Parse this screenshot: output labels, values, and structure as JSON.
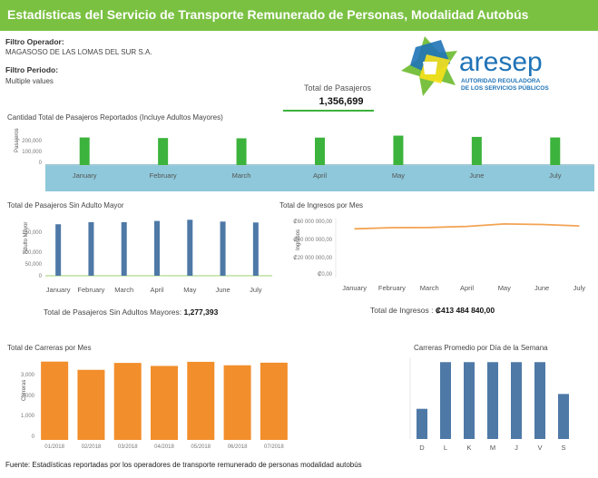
{
  "header": {
    "title": "Estadísticas del Servicio de Transporte Remunerado de Personas, Modalidad Autobús",
    "color": "#7ac142"
  },
  "filters": {
    "operator_label": "Filtro Operador:",
    "operator_value": "MAGASOSO DE LAS LOMAS DEL SUR S.A.",
    "period_label": "Filtro Periodo:",
    "period_value": "Multiple values"
  },
  "logo": {
    "name": "aresep",
    "line1": "AUTORIDAD REGULADORA",
    "line2": "DE LOS SERVICIOS PÚBLICOS"
  },
  "total_pasajeros": {
    "label": "Total de Pasajeros",
    "value": "1,356,699"
  },
  "summaries": {
    "sin_adultos_label": "Total de Pasajeros Sin Adultos Mayores:",
    "sin_adultos_value": "1,277,393",
    "ingresos_label": "Total de Ingresos :",
    "ingresos_value": "₡413 484 840,00"
  },
  "footer": {
    "text": "Fuente: Estadísticas reportadas por los operadores de transporte remunerado de personas modalidad autobús"
  },
  "chart_data": [
    {
      "id": "pasajeros_total",
      "type": "bar",
      "title": "Cantidad Total de Pasajeros Reportados (Incluye Adultos Mayores)",
      "ylabel": "Pasajeros",
      "categories": [
        "January",
        "February",
        "March",
        "April",
        "May",
        "June",
        "July"
      ],
      "values": [
        197000,
        193000,
        191000,
        196000,
        210000,
        201000,
        197000
      ],
      "yticks": [
        "200,000",
        "100,000",
        "0"
      ],
      "ylim": [
        0,
        220000
      ],
      "color": "#3cb33c"
    },
    {
      "id": "sin_adulto_mayor",
      "type": "bar",
      "title": "Total de Pasajeros Sin Adulto Mayor",
      "ylabel": "Adulto Mayor",
      "categories": [
        "January",
        "February",
        "March",
        "April",
        "May",
        "June",
        "July"
      ],
      "values": [
        172000,
        179000,
        179000,
        183000,
        187000,
        181000,
        178000
      ],
      "yticks": [
        "150,000",
        "100,000",
        "50,000",
        "0"
      ],
      "ylim": [
        0,
        200000
      ],
      "color": "#4e79a7"
    },
    {
      "id": "ingresos",
      "type": "line",
      "title": "Total de Ingresos por Mes",
      "ylabel": "Ingresos",
      "categories": [
        "January",
        "February",
        "March",
        "April",
        "May",
        "June",
        "July"
      ],
      "values": [
        56500000,
        58000000,
        58200000,
        59500000,
        62500000,
        61800000,
        60000000
      ],
      "yticks": [
        "₡60 000 000,00",
        "₡40 000 000,00",
        "₡20 000 000,00",
        "₡0,00"
      ],
      "ylim": [
        0,
        70000000
      ],
      "color": "#f3a354"
    },
    {
      "id": "carreras_mes",
      "type": "bar",
      "title": "Total de Carreras por Mes",
      "ylabel": "Carreras",
      "categories": [
        "01/2018",
        "02/2018",
        "03/2018",
        "04/2018",
        "05/2018",
        "06/2018",
        "07/2018"
      ],
      "values": [
        3620,
        3240,
        3560,
        3420,
        3610,
        3450,
        3570
      ],
      "yticks": [
        "3,000",
        "2,000",
        "1,000",
        "0"
      ],
      "ylim": [
        0,
        3900
      ],
      "color": "#f28e2b"
    },
    {
      "id": "carreras_dia",
      "type": "bar",
      "title": "Carreras Promedio por Día de la Semana",
      "categories": [
        "D",
        "L",
        "K",
        "M",
        "J",
        "V",
        "S"
      ],
      "values": [
        55,
        140,
        140,
        140,
        140,
        140,
        82
      ],
      "ylim": [
        0,
        152
      ],
      "color": "#4e79a7"
    }
  ]
}
